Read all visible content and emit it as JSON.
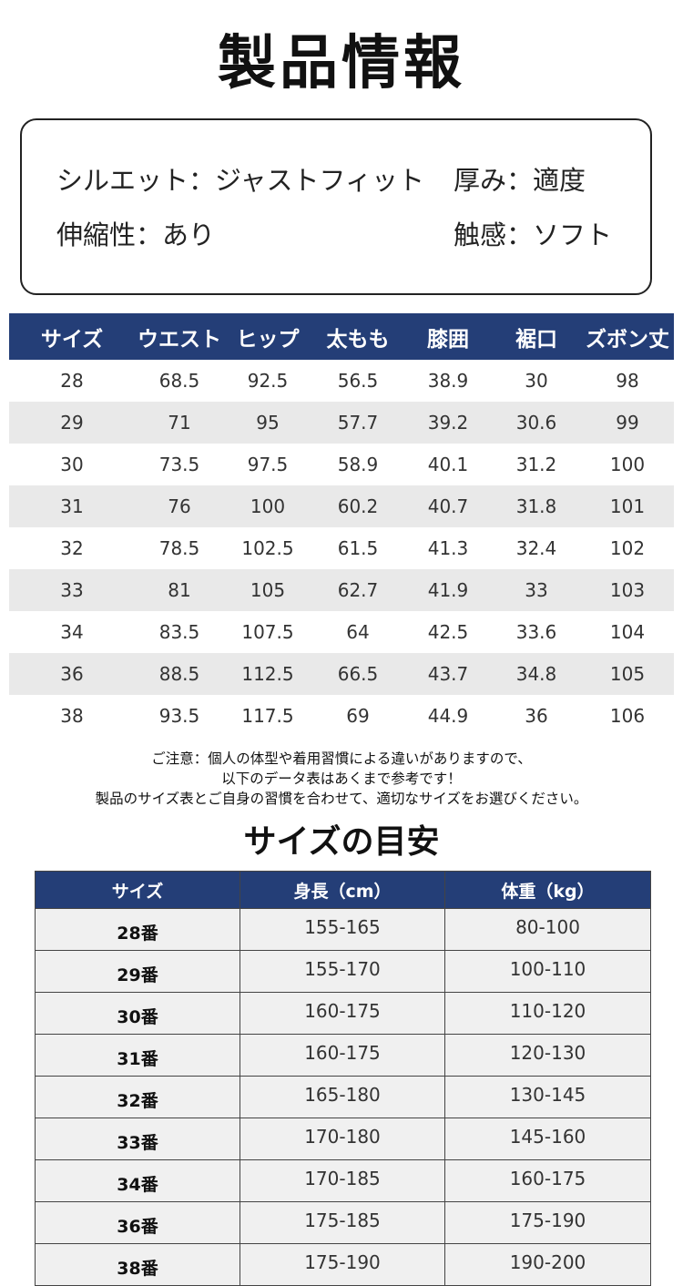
{
  "title": "製品情報",
  "specs": {
    "silhouette": "シルエット：ジャストフィット",
    "thickness": "厚み：適度",
    "stretch": "伸縮性：あり",
    "feel": "触感：ソフト"
  },
  "size_table": {
    "headers": [
      "サイズ",
      "ウエスト",
      "ヒップ",
      "太もも",
      "膝囲",
      "裾口",
      "ズボン丈"
    ],
    "rows": [
      [
        "28",
        "68.5",
        "92.5",
        "56.5",
        "38.9",
        "30",
        "98"
      ],
      [
        "29",
        "71",
        "95",
        "57.7",
        "39.2",
        "30.6",
        "99"
      ],
      [
        "30",
        "73.5",
        "97.5",
        "58.9",
        "40.1",
        "31.2",
        "100"
      ],
      [
        "31",
        "76",
        "100",
        "60.2",
        "40.7",
        "31.8",
        "101"
      ],
      [
        "32",
        "78.5",
        "102.5",
        "61.5",
        "41.3",
        "32.4",
        "102"
      ],
      [
        "33",
        "81",
        "105",
        "62.7",
        "41.9",
        "33",
        "103"
      ],
      [
        "34",
        "83.5",
        "107.5",
        "64",
        "42.5",
        "33.6",
        "104"
      ],
      [
        "36",
        "88.5",
        "112.5",
        "66.5",
        "43.7",
        "34.8",
        "105"
      ],
      [
        "38",
        "93.5",
        "117.5",
        "69",
        "44.9",
        "36",
        "106"
      ]
    ]
  },
  "notice": [
    "ご注意：個人の体型や着用習慣による違いがありますので、",
    "以下のデータ表はあくまで参考です！",
    "製品のサイズ表とご自身の習慣を合わせて、適切なサイズをお選びください。"
  ],
  "guide": {
    "title": "サイズの目安",
    "headers": [
      "サイズ",
      "身長（cm）",
      "体重（kg）"
    ],
    "rows": [
      [
        "28番",
        "155-165",
        "80-100"
      ],
      [
        "29番",
        "155-170",
        "100-110"
      ],
      [
        "30番",
        "160-175",
        "110-120"
      ],
      [
        "31番",
        "160-175",
        "120-130"
      ],
      [
        "32番",
        "165-180",
        "130-145"
      ],
      [
        "33番",
        "170-180",
        "145-160"
      ],
      [
        "34番",
        "170-185",
        "160-175"
      ],
      [
        "36番",
        "175-185",
        "175-190"
      ],
      [
        "38番",
        "175-190",
        "190-200"
      ]
    ]
  },
  "colors": {
    "header_navy": "#243e77",
    "row_shade": "#e9e9e9"
  }
}
